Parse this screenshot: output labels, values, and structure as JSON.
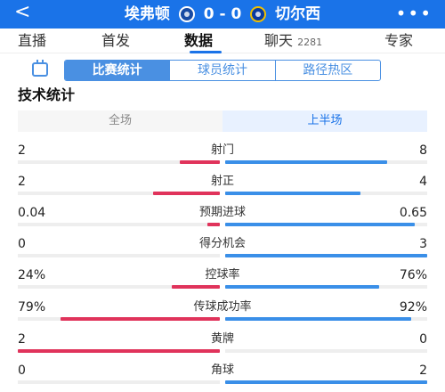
{
  "header": {
    "back_glyph": "<",
    "home_team": "埃弗顿",
    "score": "0 - 0",
    "away_team": "切尔西",
    "more_glyph": "•••",
    "home_crest_icon": "everton-crest-icon",
    "away_crest_icon": "chelsea-crest-icon"
  },
  "tabs": [
    {
      "label": "直播"
    },
    {
      "label": "首发"
    },
    {
      "label": "数据",
      "active": true
    },
    {
      "label": "聊天",
      "count": "2281"
    },
    {
      "label": "专家"
    }
  ],
  "subtabs": [
    "比赛统计",
    "球员统计",
    "路径热区"
  ],
  "section_title": "技术统计",
  "period": {
    "full": "全场",
    "half": "上半场",
    "selected": "上半场"
  },
  "colors": {
    "home": "#e0335b",
    "away": "#3a8fe8",
    "accent": "#1a73e8"
  },
  "stats": [
    {
      "label": "射门",
      "home": "2",
      "away": "8",
      "home_share": 0.2,
      "away_share": 0.8
    },
    {
      "label": "射正",
      "home": "2",
      "away": "4",
      "home_share": 0.33,
      "away_share": 0.67
    },
    {
      "label": "预期进球",
      "home": "0.04",
      "away": "0.65",
      "home_share": 0.06,
      "away_share": 0.94
    },
    {
      "label": "得分机会",
      "home": "0",
      "away": "3",
      "home_share": 0.0,
      "away_share": 1.0
    },
    {
      "label": "控球率",
      "home": "24%",
      "away": "76%",
      "home_share": 0.24,
      "away_share": 0.76
    },
    {
      "label": "传球成功率",
      "home": "79%",
      "away": "92%",
      "home_share": 0.79,
      "away_share": 0.92
    },
    {
      "label": "黄牌",
      "home": "2",
      "away": "0",
      "home_share": 1.0,
      "away_share": 0.0
    },
    {
      "label": "角球",
      "home": "0",
      "away": "2",
      "home_share": 0.0,
      "away_share": 1.0
    }
  ]
}
